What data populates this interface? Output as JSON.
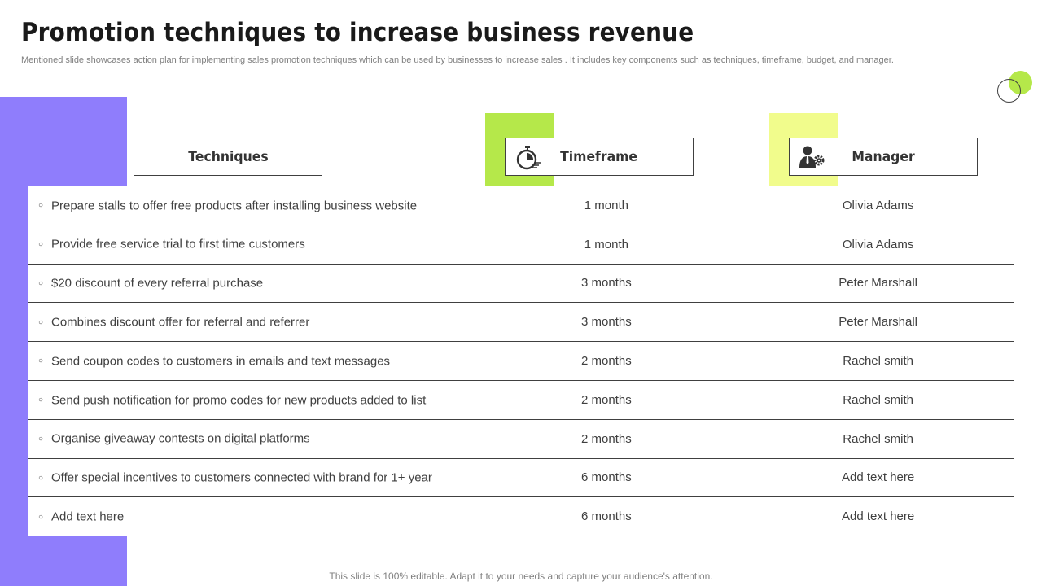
{
  "title": "Promotion techniques to increase business revenue",
  "subtitle": "Mentioned slide showcases action plan for implementing sales promotion techniques which can be used by businesses to increase sales . It includes key components such as techniques, timeframe, budget, and manager.",
  "colors": {
    "purple": "#8f7dfc",
    "green": "#b5e84a",
    "yellow": "#f1fc8c"
  },
  "headers": {
    "techniques": "Techniques",
    "timeframe": "Timeframe",
    "manager": "Manager",
    "timeframe_icon": "stopwatch-icon",
    "manager_icon": "businessman-gear-icon"
  },
  "bullet_glyph": "○",
  "rows": [
    {
      "technique": "Prepare stalls to offer free products after installing business website",
      "timeframe": "1 month",
      "manager": "Olivia Adams"
    },
    {
      "technique": "Provide free service trial to first time customers",
      "timeframe": "1 month",
      "manager": "Olivia Adams"
    },
    {
      "technique": "$20 discount of every referral purchase",
      "timeframe": "3 months",
      "manager": "Peter Marshall"
    },
    {
      "technique": "Combines discount offer for referral and referrer",
      "timeframe": "3 months",
      "manager": "Peter Marshall"
    },
    {
      "technique": "Send coupon codes to customers in emails and text messages",
      "timeframe": "2 months",
      "manager": "Rachel smith"
    },
    {
      "technique": "Send push notification for promo codes for new products added to list",
      "timeframe": "2 months",
      "manager": "Rachel smith"
    },
    {
      "technique": "Organise giveaway contests on digital platforms",
      "timeframe": "2 months",
      "manager": "Rachel smith"
    },
    {
      "technique": "Offer special incentives to customers connected with brand for 1+ year",
      "timeframe": "6 months",
      "manager": "Add text here"
    },
    {
      "technique": "Add text here",
      "timeframe": "6 months",
      "manager": "Add text here"
    }
  ],
  "footer": "This slide is 100% editable. Adapt it to your needs and capture your audience's attention."
}
